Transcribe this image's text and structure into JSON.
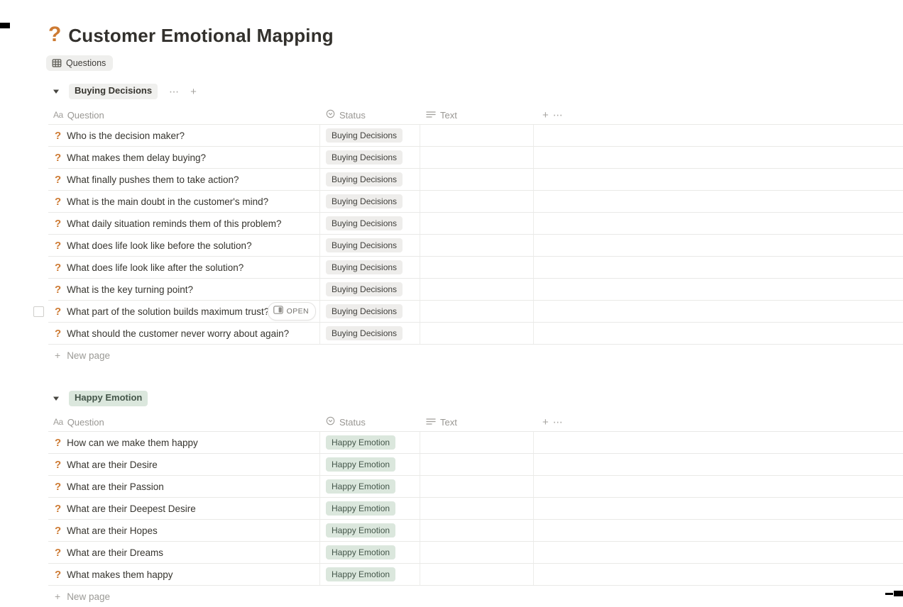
{
  "page": {
    "icon": "?",
    "title": "Customer Emotional Mapping"
  },
  "view_tab": {
    "label": "Questions"
  },
  "columns": {
    "question_icon": "Aa",
    "question_label": "Question",
    "status_label": "Status",
    "text_label": "Text",
    "add_label": "+",
    "more_label": "⋯"
  },
  "group_controls": {
    "more": "⋯",
    "add": "+"
  },
  "open_button_label": "OPEN",
  "new_page_label": "New page",
  "groups": [
    {
      "name": "Buying Decisions",
      "color": "gray",
      "show_controls": true,
      "rows": [
        {
          "question": "Who is the decision maker?",
          "status": "Buying Decisions"
        },
        {
          "question": "What makes them delay buying?",
          "status": "Buying Decisions"
        },
        {
          "question": "What finally pushes them to take action?",
          "status": "Buying Decisions"
        },
        {
          "question": "What is the main doubt in the customer's mind?",
          "status": "Buying Decisions"
        },
        {
          "question": "What daily situation reminds them of this problem?",
          "status": "Buying Decisions"
        },
        {
          "question": "What does life look like before the solution?",
          "status": "Buying Decisions"
        },
        {
          "question": "What does life look like after the solution?",
          "status": "Buying Decisions"
        },
        {
          "question": "What is the key turning point?",
          "status": "Buying Decisions"
        },
        {
          "question": "What part of the solution builds maximum trust?",
          "status": "Buying Decisions",
          "has_open_button": true,
          "has_checkbox": true
        },
        {
          "question": "What should the customer never worry about again?",
          "status": "Buying Decisions"
        }
      ]
    },
    {
      "name": "Happy Emotion",
      "color": "green",
      "show_controls": false,
      "rows": [
        {
          "question": "How can we make them happy",
          "status": "Happy Emotion"
        },
        {
          "question": "What are their Desire",
          "status": "Happy Emotion"
        },
        {
          "question": "What are their Passion",
          "status": "Happy Emotion"
        },
        {
          "question": "What are their Deepest Desire",
          "status": "Happy Emotion"
        },
        {
          "question": "What are their Hopes",
          "status": "Happy Emotion"
        },
        {
          "question": "What are their Dreams",
          "status": "Happy Emotion"
        },
        {
          "question": "What makes them happy",
          "status": "Happy Emotion"
        }
      ]
    }
  ],
  "colors": {
    "accent_orange": "#cd7a32",
    "title_text": "#32302c",
    "gray_badge_bg": "#eeedeb",
    "green_badge_bg": "#dbe7dd",
    "green_badge_text": "#44564a",
    "muted_text": "#9b9a96",
    "row_border": "#e9e9e7"
  }
}
